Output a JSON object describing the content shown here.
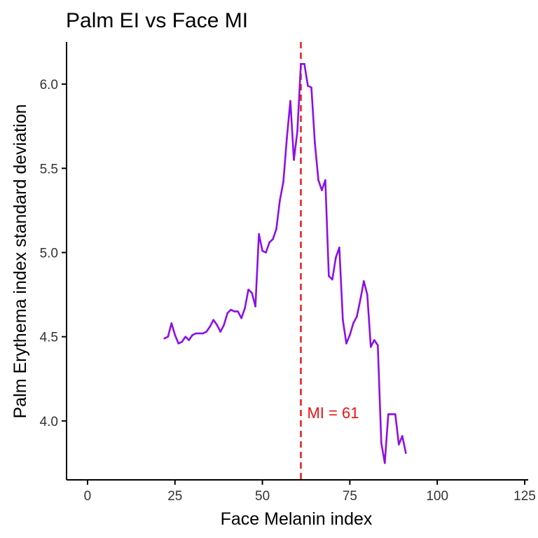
{
  "chart_data": {
    "type": "line",
    "title": "Palm EI vs Face MI",
    "xlabel": "Face Melanin index",
    "ylabel": "Palm Erythema index standard deviation",
    "xlim": [
      -6,
      126
    ],
    "ylim": [
      3.65,
      6.25
    ],
    "x_ticks": [
      0,
      25,
      50,
      75,
      100,
      125
    ],
    "y_ticks": [
      4.0,
      4.5,
      5.0,
      5.5,
      6.0
    ],
    "x_tick_labels": [
      "0",
      "25",
      "50",
      "75",
      "100",
      "125"
    ],
    "y_tick_labels": [
      "4.0",
      "4.5",
      "5.0",
      "5.5",
      "6.0"
    ],
    "grid": false,
    "series": [
      {
        "color": "#8B10E8",
        "x": [
          22,
          23,
          24,
          25,
          26,
          27,
          28,
          29,
          30,
          31,
          32,
          33,
          34,
          35,
          36,
          37,
          38,
          39,
          40,
          41,
          42,
          43,
          44,
          45,
          46,
          47,
          48,
          49,
          50,
          51,
          52,
          53,
          54,
          55,
          56,
          57,
          58,
          59,
          60,
          61,
          62,
          63,
          64,
          65,
          66,
          67,
          68,
          69,
          70,
          71,
          72,
          73,
          74,
          75,
          76,
          77,
          78,
          79,
          80,
          81,
          82,
          83,
          84,
          85,
          86,
          87,
          88,
          89,
          90,
          91
        ],
        "y": [
          4.49,
          4.5,
          4.58,
          4.51,
          4.46,
          4.47,
          4.5,
          4.48,
          4.51,
          4.52,
          4.52,
          4.52,
          4.53,
          4.56,
          4.6,
          4.57,
          4.53,
          4.57,
          4.64,
          4.66,
          4.65,
          4.65,
          4.61,
          4.67,
          4.78,
          4.76,
          4.68,
          5.11,
          5.01,
          5.0,
          5.06,
          5.08,
          5.14,
          5.31,
          5.42,
          5.68,
          5.9,
          5.55,
          5.72,
          6.12,
          6.12,
          5.99,
          5.98,
          5.65,
          5.43,
          5.37,
          5.43,
          4.86,
          4.84,
          4.97,
          5.03,
          4.6,
          4.46,
          4.51,
          4.58,
          4.62,
          4.72,
          4.83,
          4.75,
          4.44,
          4.48,
          4.45,
          3.87,
          3.75,
          4.04,
          4.04,
          4.04,
          3.86,
          3.91,
          3.81
        ]
      }
    ],
    "reference_line": {
      "x": 61,
      "color": "#EE1111",
      "style": "dashed",
      "label": "MI = 61"
    }
  }
}
